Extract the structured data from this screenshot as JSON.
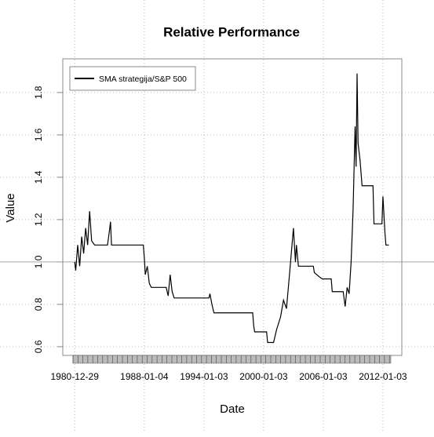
{
  "chart_data": {
    "type": "line",
    "title": "Relative Performance",
    "x_label": "Date",
    "y_label": "Value",
    "x": [
      1981.0,
      1981.1,
      1981.3,
      1981.5,
      1981.7,
      1981.9,
      1982.1,
      1982.3,
      1982.5,
      1982.7,
      1983.0,
      1984.3,
      1984.5,
      1984.6,
      1984.7,
      1987.9,
      1988.0,
      1988.1,
      1988.3,
      1988.5,
      1988.7,
      1990.2,
      1990.4,
      1990.6,
      1990.8,
      1991.0,
      1994.5,
      1994.6,
      1994.8,
      1995.0,
      1998.9,
      1999.0,
      1999.1,
      2000.3,
      2000.4,
      2001.0,
      2001.3,
      2001.7,
      2002.0,
      2002.3,
      2002.6,
      2002.8,
      2003.0,
      2003.2,
      2003.3,
      2003.5,
      2005.0,
      2005.1,
      2005.6,
      2005.9,
      2006.8,
      2006.9,
      2008.0,
      2008.2,
      2008.4,
      2008.6,
      2008.8,
      2009.0,
      2009.2,
      2009.3,
      2009.4,
      2009.5,
      2009.7,
      2009.9,
      2011.0,
      2011.1,
      2011.9,
      2012.0,
      2012.2,
      2012.3,
      2012.6
    ],
    "series": [
      {
        "name": "SMA strategija/S&P 500",
        "color": "#000000",
        "values": [
          1.0,
          0.96,
          1.08,
          0.98,
          1.12,
          1.04,
          1.16,
          1.08,
          1.24,
          1.1,
          1.08,
          1.08,
          1.15,
          1.19,
          1.08,
          1.08,
          1.02,
          0.94,
          0.98,
          0.9,
          0.88,
          0.88,
          0.84,
          0.94,
          0.86,
          0.83,
          0.83,
          0.85,
          0.8,
          0.76,
          0.76,
          0.7,
          0.67,
          0.67,
          0.62,
          0.62,
          0.68,
          0.74,
          0.82,
          0.78,
          0.94,
          1.05,
          1.16,
          1.0,
          1.08,
          0.98,
          0.98,
          0.95,
          0.93,
          0.92,
          0.92,
          0.86,
          0.86,
          0.79,
          0.88,
          0.85,
          1.0,
          1.25,
          1.64,
          1.45,
          1.89,
          1.56,
          1.48,
          1.36,
          1.36,
          1.18,
          1.18,
          1.31,
          1.14,
          1.08,
          1.08
        ]
      }
    ],
    "xlim": [
      1979.8,
      2013.9
    ],
    "xticks": [
      {
        "value": 1981,
        "label": "1980-12-29"
      },
      {
        "value": 1988,
        "label": "1988-01-04"
      },
      {
        "value": 1994,
        "label": "1994-01-03"
      },
      {
        "value": 2000,
        "label": "2000-01-03"
      },
      {
        "value": 2006,
        "label": "2006-01-03"
      },
      {
        "value": 2012,
        "label": "2012-01-03"
      }
    ],
    "ylim": [
      0.559,
      1.959
    ],
    "yticks": [
      0.6,
      0.8,
      {
        "value": 1.0,
        "label": "1.0"
      },
      1.2,
      1.4,
      1.6,
      1.8
    ],
    "grid": true,
    "legend": "top-left"
  }
}
